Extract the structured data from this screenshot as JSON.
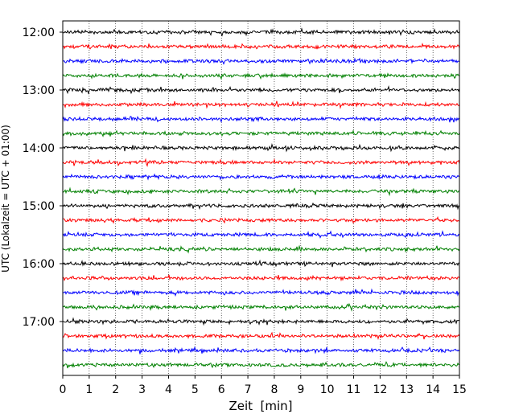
{
  "chart_data": {
    "type": "line",
    "title": "",
    "xlabel": "Zeit  [min]",
    "ylabel": "UTC (Lokalzeit = UTC + 01:00)",
    "xlim": [
      0,
      15
    ],
    "x_ticks": [
      0,
      1,
      2,
      3,
      4,
      5,
      6,
      7,
      8,
      9,
      10,
      11,
      12,
      13,
      14,
      15
    ],
    "y_ticks": [
      "12:00",
      "13:00",
      "14:00",
      "15:00",
      "16:00",
      "17:00"
    ],
    "trace_interval_min": 15,
    "trace_colors": [
      "#000000",
      "#ff0000",
      "#0000ff",
      "#008000"
    ],
    "traces": [
      "12:00",
      "12:15",
      "12:30",
      "12:45",
      "13:00",
      "13:15",
      "13:30",
      "13:45",
      "14:00",
      "14:15",
      "14:30",
      "14:45",
      "15:00",
      "15:15",
      "15:30",
      "15:45",
      "16:00",
      "16:15",
      "16:30",
      "16:45",
      "17:00",
      "17:15",
      "17:30",
      "17:45"
    ],
    "grid": "vertical dotted",
    "legend": "none"
  }
}
